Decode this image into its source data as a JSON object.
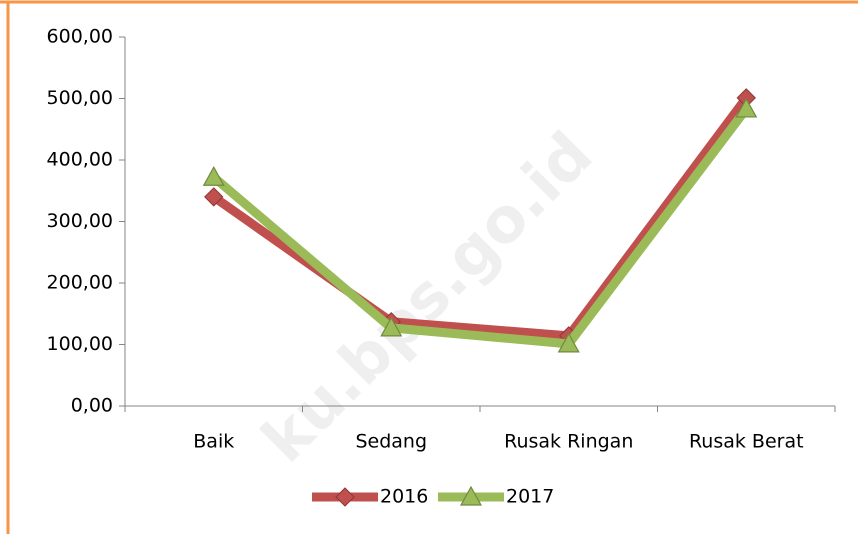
{
  "chart_data": {
    "type": "line",
    "categories": [
      "Baik",
      "Sedang",
      "Rusak Ringan",
      "Rusak Berat"
    ],
    "series": [
      {
        "name": "2016",
        "color": "#c0504d",
        "marker": "diamond",
        "values": [
          340,
          137,
          114,
          501
        ]
      },
      {
        "name": "2017",
        "color": "#9bbb59",
        "marker": "triangle",
        "values": [
          372,
          127,
          101,
          483
        ]
      }
    ],
    "ylim": [
      0,
      600
    ],
    "yticks": [
      {
        "value": 0,
        "label": "0,00"
      },
      {
        "value": 100,
        "label": "100,00"
      },
      {
        "value": 200,
        "label": "200,00"
      },
      {
        "value": 300,
        "label": "300,00"
      },
      {
        "value": 400,
        "label": "400,00"
      },
      {
        "value": 500,
        "label": "500,00"
      },
      {
        "value": 600,
        "label": "600,00"
      }
    ],
    "grid": false,
    "legend": "bottom",
    "watermark": "ku.bps.go.id"
  }
}
